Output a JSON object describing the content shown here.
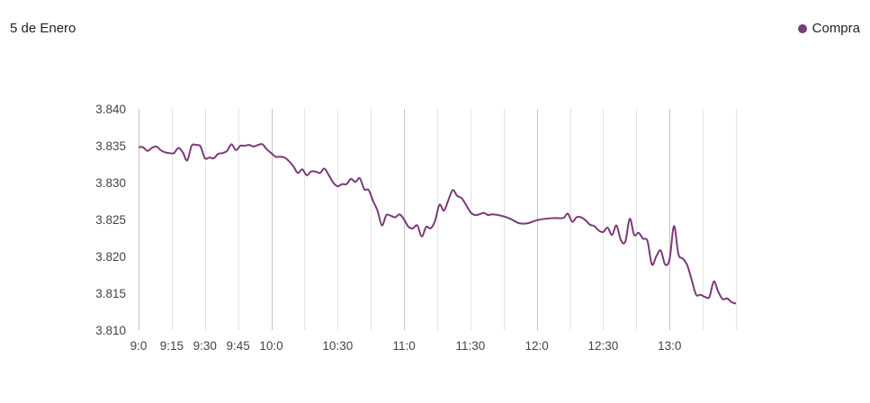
{
  "chart_data": {
    "type": "line",
    "title": "5 de Enero",
    "xlabel": "",
    "ylabel": "",
    "legend_position": "top-right",
    "grid": "vertical",
    "x_ticks": [
      "9:0",
      "9:15",
      "9:30",
      "9:45",
      "10:0",
      "10:30",
      "11:0",
      "11:30",
      "12:0",
      "12:30",
      "13:0"
    ],
    "y_ticks": [
      "3.840",
      "3.835",
      "3.830",
      "3.825",
      "3.820",
      "3.815",
      "3.810"
    ],
    "ylim": [
      3.81,
      3.84
    ],
    "xlim": [
      "9:00",
      "13:30"
    ],
    "series": [
      {
        "name": "Compra",
        "color": "#7b3a78",
        "x": [
          "9:00",
          "9:02",
          "9:04",
          "9:06",
          "9:08",
          "9:10",
          "9:12",
          "9:14",
          "9:16",
          "9:18",
          "9:20",
          "9:22",
          "9:24",
          "9:26",
          "9:28",
          "9:30",
          "9:32",
          "9:34",
          "9:36",
          "9:38",
          "9:40",
          "9:42",
          "9:44",
          "9:46",
          "9:48",
          "9:50",
          "9:52",
          "9:54",
          "9:56",
          "9:58",
          "10:00",
          "10:02",
          "10:04",
          "10:06",
          "10:08",
          "10:10",
          "10:12",
          "10:14",
          "10:16",
          "10:18",
          "10:20",
          "10:22",
          "10:24",
          "10:26",
          "10:28",
          "10:30",
          "10:32",
          "10:34",
          "10:36",
          "10:38",
          "10:40",
          "10:42",
          "10:44",
          "10:46",
          "10:48",
          "10:50",
          "10:52",
          "10:54",
          "10:56",
          "10:58",
          "11:00",
          "11:02",
          "11:04",
          "11:06",
          "11:08",
          "11:10",
          "11:12",
          "11:14",
          "11:16",
          "11:18",
          "11:20",
          "11:22",
          "11:24",
          "11:26",
          "11:28",
          "11:30",
          "11:32",
          "11:34",
          "11:36",
          "11:38",
          "11:40",
          "11:44",
          "11:48",
          "11:52",
          "11:56",
          "12:00",
          "12:04",
          "12:08",
          "12:12",
          "12:14",
          "12:16",
          "12:18",
          "12:20",
          "12:22",
          "12:24",
          "12:26",
          "12:28",
          "12:30",
          "12:32",
          "12:34",
          "12:36",
          "12:38",
          "12:40",
          "12:42",
          "12:44",
          "12:46",
          "12:48",
          "12:50",
          "12:52",
          "12:54",
          "12:56",
          "12:58",
          "13:00",
          "13:02",
          "13:04",
          "13:06",
          "13:08",
          "13:10",
          "13:12",
          "13:14",
          "13:16",
          "13:18",
          "13:20",
          "13:22",
          "13:24",
          "13:26",
          "13:28",
          "13:30"
        ],
        "values": [
          3.8348,
          3.8348,
          3.8343,
          3.8347,
          3.8349,
          3.8344,
          3.8341,
          3.834,
          3.834,
          3.8347,
          3.8341,
          3.833,
          3.835,
          3.8351,
          3.8349,
          3.8333,
          3.8334,
          3.8333,
          3.8339,
          3.834,
          3.8343,
          3.8352,
          3.8344,
          3.835,
          3.835,
          3.8351,
          3.8349,
          3.8351,
          3.8352,
          3.8345,
          3.834,
          3.8335,
          3.8335,
          3.8334,
          3.8329,
          3.8322,
          3.8313,
          3.8318,
          3.831,
          3.8315,
          3.8315,
          3.8313,
          3.8319,
          3.831,
          3.83,
          3.8295,
          3.8298,
          3.8298,
          3.8305,
          3.8301,
          3.8306,
          3.8291,
          3.829,
          3.8275,
          3.8262,
          3.8242,
          3.8256,
          3.8255,
          3.8253,
          3.8257,
          3.825,
          3.824,
          3.8238,
          3.8242,
          3.8227,
          3.824,
          3.8238,
          3.8248,
          3.827,
          3.8262,
          3.8276,
          3.829,
          3.8282,
          3.8279,
          3.827,
          3.826,
          3.8256,
          3.8257,
          3.8259,
          3.8256,
          3.8257,
          3.8255,
          3.8251,
          3.8245,
          3.8245,
          3.8249,
          3.8251,
          3.8252,
          3.8252,
          3.8258,
          3.8247,
          3.8253,
          3.8253,
          3.8249,
          3.8243,
          3.8241,
          3.8235,
          3.8233,
          3.8239,
          3.8229,
          3.8242,
          3.8222,
          3.822,
          3.8251,
          3.8229,
          3.8232,
          3.8224,
          3.8221,
          3.8189,
          3.82,
          3.8208,
          3.8189,
          3.8196,
          3.8241,
          3.8203,
          3.8197,
          3.8188,
          3.8168,
          3.8148,
          3.8148,
          3.8145,
          3.8145,
          3.8166,
          3.8152,
          3.8142,
          3.8143,
          3.8138,
          3.8136
        ]
      }
    ]
  }
}
